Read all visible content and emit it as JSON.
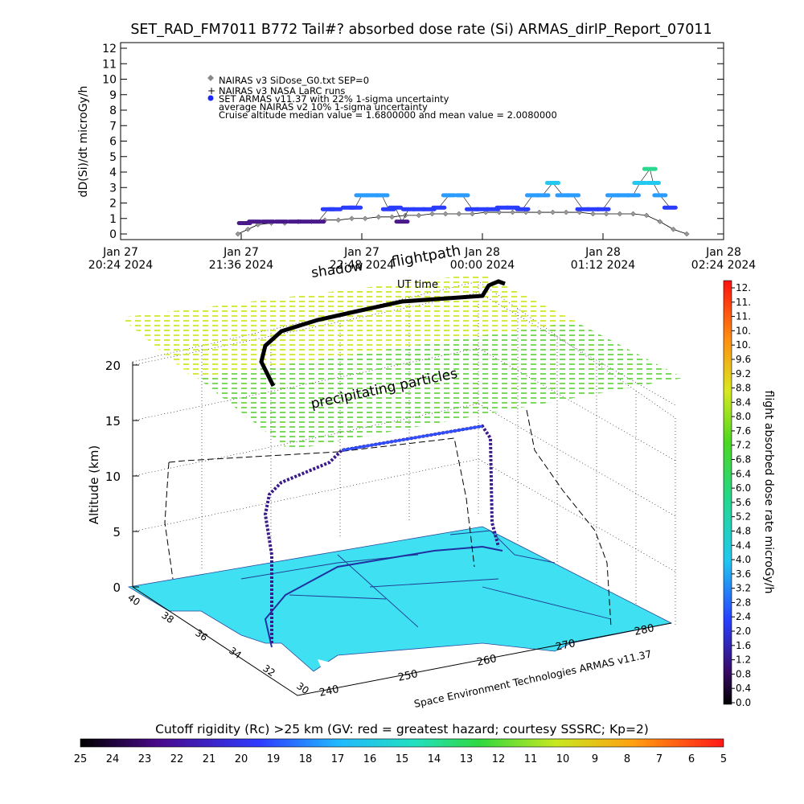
{
  "chart_data": [
    {
      "type": "scatter",
      "title": "SET_RAD_FM7011  B772 Tail#? absorbed dose rate (Si) ARMAS_dirIP_Report_07011",
      "ylabel": "dD(Si)/dt microGy/h",
      "ylim": [
        0,
        12
      ],
      "yticks": [
        "0",
        "1",
        "2",
        "3",
        "4",
        "5",
        "6",
        "7",
        "8",
        "9",
        "10",
        "11",
        "12"
      ],
      "xticks": [
        {
          "line1": "Jan 27",
          "line2": "20:24 2024"
        },
        {
          "line1": "Jan 27",
          "line2": "21:36 2024"
        },
        {
          "line1": "Jan 27",
          "line2": "22:48 2024"
        },
        {
          "line1": "Jan 28",
          "line2": "00:00 2024"
        },
        {
          "line1": "Jan 28",
          "line2": "01:12 2024"
        },
        {
          "line1": "Jan 28",
          "line2": "02:24 2024"
        }
      ],
      "xlim_minutes": [
        0,
        360
      ],
      "legend": [
        "NAIRAS v3 SiDose_G0.txt SEP=0",
        "NAIRAS v3 NASA LaRC runs",
        "SET ARMAS v11.37 with 22% 1-sigma uncertainty",
        "average NAIRAS v2 10% 1-sigma uncertainty",
        "Cruise altitude median value = 1.6800000 and mean value = 2.0080000"
      ],
      "series": [
        {
          "name": "SET ARMAS v11.37 with 22% 1-sigma uncertainty",
          "x_minutes": [
            74,
            80,
            88,
            96,
            104,
            110,
            118,
            124,
            128,
            136,
            140,
            144,
            150,
            156,
            160,
            164,
            168,
            172,
            178,
            184,
            190,
            196,
            204,
            210,
            216,
            222,
            228,
            234,
            240,
            246,
            252,
            258,
            264,
            270,
            276,
            282,
            288,
            294,
            300,
            306,
            310,
            316,
            318,
            322,
            328
          ],
          "y": [
            0.7,
            0.8,
            0.8,
            0.8,
            0.8,
            0.8,
            0.8,
            1.6,
            1.6,
            1.7,
            1.7,
            2.5,
            2.5,
            2.5,
            1.6,
            1.7,
            0.8,
            1.6,
            1.6,
            1.6,
            1.7,
            2.5,
            2.5,
            1.6,
            1.6,
            1.6,
            1.7,
            1.7,
            1.6,
            2.5,
            2.5,
            3.3,
            2.5,
            2.5,
            1.6,
            1.6,
            1.6,
            2.5,
            2.5,
            2.5,
            3.3,
            4.2,
            3.3,
            2.5,
            1.7
          ]
        },
        {
          "name": "NAIRAS v3 SiDose_G0.txt SEP=0",
          "x_minutes": [
            70,
            76,
            82,
            90,
            98,
            106,
            114,
            122,
            130,
            138,
            146,
            154,
            162,
            170,
            178,
            186,
            194,
            202,
            210,
            218,
            226,
            234,
            242,
            250,
            258,
            266,
            274,
            282,
            290,
            298,
            306,
            314,
            322,
            330,
            338
          ],
          "y": [
            0.0,
            0.3,
            0.6,
            0.7,
            0.7,
            0.8,
            0.8,
            0.9,
            0.9,
            1.0,
            1.0,
            1.1,
            1.1,
            1.2,
            1.2,
            1.3,
            1.3,
            1.3,
            1.3,
            1.4,
            1.4,
            1.4,
            1.4,
            1.4,
            1.4,
            1.4,
            1.4,
            1.3,
            1.3,
            1.3,
            1.3,
            1.2,
            0.8,
            0.3,
            0.0
          ]
        }
      ]
    },
    {
      "type": "scatter",
      "title": "",
      "annotations": [
        "shadow",
        "flightpath",
        "UT time",
        "precipitating particles",
        "Space Environment Technologies ARMAS v11.37"
      ],
      "zlabel": "Altitude (km)",
      "zticks": [
        "0",
        "5",
        "10",
        "15",
        "20"
      ],
      "lat_ticks": [
        "40",
        "38",
        "36",
        "34",
        "32",
        "30"
      ],
      "lon_ticks": [
        "240",
        "250",
        "260",
        "270",
        "280"
      ],
      "colorbar_label": "flight absorbed dose rate microGy/h",
      "colorbar_ticks": [
        "12.",
        "11.",
        "11.",
        "10.",
        "10.",
        "9.6",
        "9.2",
        "8.8",
        "8.4",
        "8.0",
        "7.6",
        "7.2",
        "6.8",
        "6.4",
        "6.0",
        "5.6",
        "5.2",
        "4.8",
        "4.4",
        "4.0",
        "3.6",
        "3.2",
        "2.8",
        "2.4",
        "2.0",
        "1.6",
        "1.2",
        "0.8",
        "0.4",
        "0.0"
      ],
      "cutoff_label": "Cutoff rigidity (Rc) >25 km (GV: red = greatest hazard; courtesy SSSRC; Kp=2)",
      "cutoff_ticks": [
        "25",
        "24",
        "23",
        "22",
        "21",
        "20",
        "19",
        "18",
        "17",
        "16",
        "15",
        "14",
        "13",
        "12",
        "11",
        "10",
        "9",
        "8",
        "7",
        "6",
        "5"
      ],
      "colors": {
        "map": "#3fe0f2",
        "grid_top": "#e8ee30",
        "grid_bottom": "#4ccc2a",
        "path_low": "#2a0060",
        "path_high": "#2c6cff"
      }
    }
  ]
}
